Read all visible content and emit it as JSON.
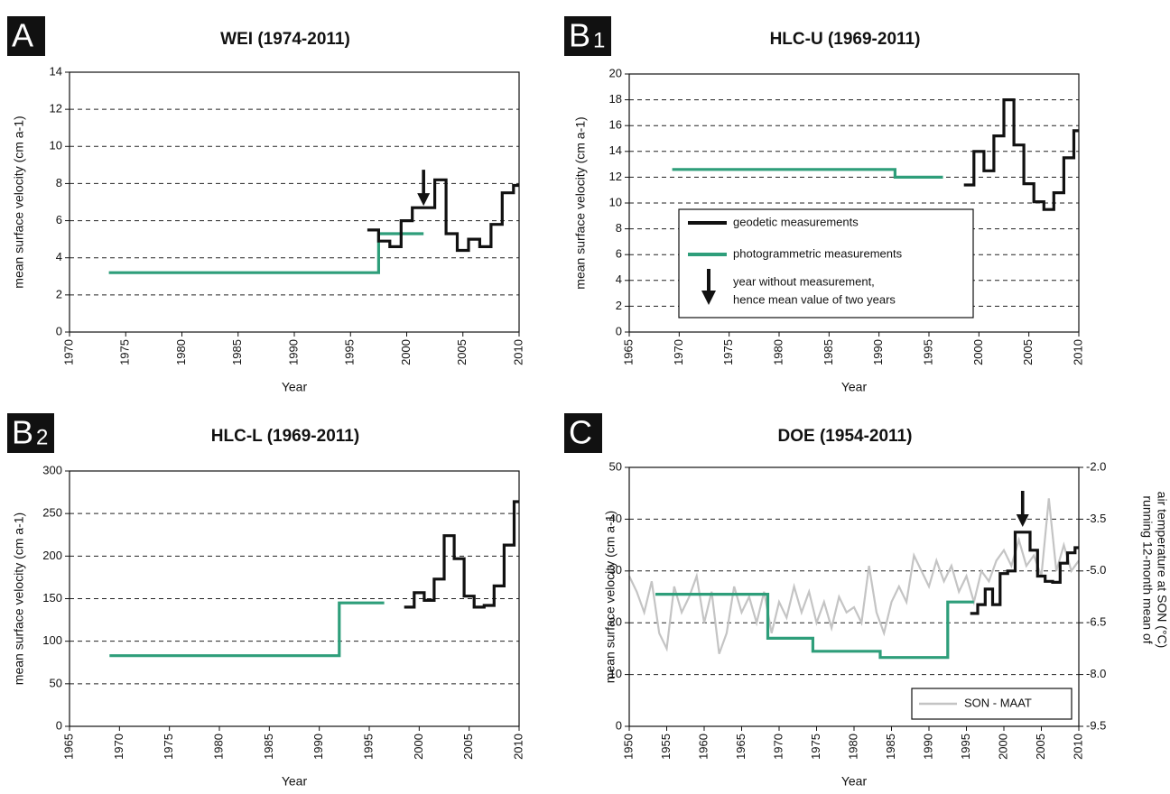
{
  "chart_data": [
    {
      "type": "line",
      "panel": "A",
      "title": "WEI (1974-2011)",
      "x_label": "Year",
      "y_label": "mean surface velocity (cm a-1)",
      "xlim": [
        1970,
        2010
      ],
      "xticks": [
        1970,
        1975,
        1980,
        1985,
        1990,
        1995,
        2000,
        2005,
        2010
      ],
      "ylim": [
        0,
        14
      ],
      "yticks": [
        0,
        2,
        4,
        6,
        8,
        10,
        12,
        14
      ],
      "grid": true,
      "series": [
        {
          "color": "#2e9e7a",
          "x": [
            1973.5,
            1997.5,
            1997.5,
            2001.5
          ],
          "values": [
            3.2,
            3.2,
            5.3,
            5.3
          ]
        },
        {
          "color": "#111111",
          "x": [
            1996.5,
            1997.5,
            1997.5,
            1998.5,
            1998.5,
            1999.5,
            1999.5,
            2000.5,
            2000.5,
            2002.5,
            2002.5,
            2003.5,
            2003.5,
            2004.5,
            2004.5,
            2005.5,
            2005.5,
            2006.5,
            2006.5,
            2007.5,
            2007.5,
            2008.5,
            2008.5,
            2009.5,
            2009.5,
            2010
          ],
          "values": [
            5.5,
            5.5,
            4.9,
            4.9,
            4.6,
            4.6,
            6.0,
            6.0,
            6.7,
            6.7,
            8.2,
            8.2,
            5.3,
            5.3,
            4.4,
            4.4,
            5.0,
            5.0,
            4.6,
            4.6,
            5.8,
            5.8,
            7.5,
            7.5,
            7.9,
            7.9
          ]
        }
      ],
      "arrows": [
        {
          "x": 2001.5,
          "y": 6.8
        }
      ]
    },
    {
      "type": "line",
      "panel": "B",
      "panel_index": "1",
      "title": "HLC-U (1969-2011)",
      "x_label": "Year",
      "y_label": "mean surface velocity (cm a-1)",
      "xlim": [
        1965,
        2010
      ],
      "xticks": [
        1965,
        1970,
        1975,
        1980,
        1985,
        1990,
        1995,
        2000,
        2005,
        2010
      ],
      "ylim": [
        0,
        20
      ],
      "yticks": [
        0,
        2,
        4,
        6,
        8,
        10,
        12,
        14,
        16,
        18,
        20
      ],
      "grid": true,
      "series": [
        {
          "name": "photogrammetric measurements",
          "color": "#2e9e7a",
          "x": [
            1969.3,
            1991.6,
            1991.6,
            1996.4
          ],
          "values": [
            12.6,
            12.6,
            12.0,
            12.0
          ]
        },
        {
          "name": "geodetic measurements",
          "color": "#111111",
          "x": [
            1998.5,
            1999.5,
            1999.5,
            2000.5,
            2000.5,
            2001.5,
            2001.5,
            2002.5,
            2002.5,
            2003.5,
            2003.5,
            2004.5,
            2004.5,
            2005.5,
            2005.5,
            2006.5,
            2006.5,
            2007.5,
            2007.5,
            2008.5,
            2008.5,
            2009.5,
            2009.5,
            2010
          ],
          "values": [
            11.4,
            11.4,
            14.0,
            14.0,
            12.5,
            12.5,
            15.2,
            15.2,
            18.0,
            18.0,
            14.5,
            14.5,
            11.5,
            11.5,
            10.1,
            10.1,
            9.5,
            9.5,
            10.8,
            10.8,
            13.5,
            13.5,
            15.6,
            15.6
          ]
        }
      ],
      "legend_note": [
        "year without measurement,",
        "hence mean value of two years"
      ]
    },
    {
      "type": "line",
      "panel": "B",
      "panel_index": "2",
      "title": "HLC-L (1969-2011)",
      "x_label": "Year",
      "y_label": "mean surface velocity (cm a-1)",
      "xlim": [
        1965,
        2010
      ],
      "xticks": [
        1965,
        1970,
        1975,
        1980,
        1985,
        1990,
        1995,
        2000,
        2005,
        2010
      ],
      "ylim": [
        0,
        300
      ],
      "yticks": [
        0,
        50,
        100,
        150,
        200,
        250,
        300
      ],
      "grid": true,
      "series": [
        {
          "color": "#2e9e7a",
          "x": [
            1969,
            1992,
            1992,
            1996.5
          ],
          "values": [
            83,
            83,
            145,
            145
          ]
        },
        {
          "color": "#111111",
          "x": [
            1998.5,
            1999.5,
            1999.5,
            2000.5,
            2000.5,
            2001.5,
            2001.5,
            2002.5,
            2002.5,
            2003.5,
            2003.5,
            2004.5,
            2004.5,
            2005.5,
            2005.5,
            2006.5,
            2006.5,
            2007.5,
            2007.5,
            2008.5,
            2008.5,
            2009.5,
            2009.5,
            2010
          ],
          "values": [
            140,
            140,
            157,
            157,
            148,
            148,
            173,
            173,
            224,
            224,
            197,
            197,
            153,
            153,
            140,
            140,
            142,
            142,
            165,
            165,
            213,
            213,
            264,
            264
          ]
        }
      ]
    },
    {
      "type": "line",
      "panel": "C",
      "title": "DOE (1954-2011)",
      "x_label": "Year",
      "y_label": "mean surface velocity (cm a-1)",
      "y2_label": [
        "running 12-month mean of",
        "air temperature at SON (°C)"
      ],
      "xlim": [
        1950,
        2010
      ],
      "xticks": [
        1950,
        1955,
        1960,
        1965,
        1970,
        1975,
        1980,
        1985,
        1990,
        1995,
        2000,
        2005,
        2010
      ],
      "ylim": [
        0,
        50
      ],
      "yticks": [
        0,
        10,
        20,
        30,
        40,
        50
      ],
      "y2lim": [
        -9.5,
        -2.0
      ],
      "y2ticks": [
        -9.5,
        {
          "value": -8.0,
          "label": "-8.0"
        },
        -6.5,
        {
          "value": -5.0,
          "label": "-5.0"
        },
        -3.5,
        {
          "value": -2.0,
          "label": "-2.0"
        }
      ],
      "grid": true,
      "series": [
        {
          "name": "SON - MAAT",
          "color": "#c4c4c4",
          "axis": "y2",
          "x": [
            1950,
            1951,
            1952,
            1953,
            1954,
            1955,
            1956,
            1957,
            1958,
            1959,
            1960,
            1961,
            1962,
            1963,
            1964,
            1965,
            1966,
            1967,
            1968,
            1969,
            1970,
            1971,
            1972,
            1973,
            1974,
            1975,
            1976,
            1977,
            1978,
            1979,
            1980,
            1981,
            1982,
            1983,
            1984,
            1985,
            1986,
            1987,
            1988,
            1989,
            1990,
            1991,
            1992,
            1993,
            1994,
            1995,
            1996,
            1997,
            1998,
            1999,
            2000,
            2001,
            2002,
            2003,
            2004,
            2005,
            2006,
            2007,
            2008,
            2009,
            2010
          ],
          "values": [
            -5.15,
            -5.6,
            -6.2,
            -5.3,
            -6.8,
            -7.25,
            -5.45,
            -6.2,
            -5.75,
            -5.15,
            -6.5,
            -5.6,
            -7.4,
            -6.8,
            -5.45,
            -6.2,
            -5.75,
            -6.5,
            -5.6,
            -6.8,
            -5.9,
            -6.35,
            -5.45,
            -6.2,
            -5.6,
            -6.5,
            -5.9,
            -6.65,
            -5.75,
            -6.2,
            -6.05,
            -6.5,
            -4.85,
            -6.2,
            -6.8,
            -5.9,
            -5.45,
            -5.9,
            -4.55,
            -5.0,
            -5.45,
            -4.7,
            -5.3,
            -4.85,
            -5.6,
            -5.15,
            -5.9,
            -5.0,
            -5.3,
            -4.7,
            -4.4,
            -4.85,
            -4.1,
            -4.85,
            -4.55,
            -5.15,
            -2.9,
            -5.0,
            -4.25,
            -5.0,
            -4.7
          ]
        },
        {
          "color": "#2e9e7a",
          "x": [
            1953.5,
            1968.5,
            1968.5,
            1974.5,
            1974.5,
            1983.5,
            1983.5,
            1992.5,
            1992.5,
            1996
          ],
          "values": [
            25.5,
            25.5,
            17,
            17,
            14.5,
            14.5,
            13.3,
            13.3,
            24,
            24
          ]
        },
        {
          "color": "#111111",
          "x": [
            1995.5,
            1996.5,
            1996.5,
            1997.5,
            1997.5,
            1998.5,
            1998.5,
            1999.5,
            1999.5,
            2000.5,
            2000.5,
            2001.5,
            2001.5,
            2003.5,
            2003.5,
            2004.5,
            2004.5,
            2005.5,
            2005.5,
            2006.5,
            2006.5,
            2007.5,
            2007.5,
            2008.5,
            2008.5,
            2009.5,
            2009.5,
            2010
          ],
          "values": [
            21.8,
            21.8,
            23.5,
            23.5,
            26.5,
            26.5,
            23.5,
            23.5,
            29.5,
            29.5,
            30,
            30,
            37.5,
            37.5,
            34,
            34,
            29,
            29,
            28,
            28,
            27.8,
            27.8,
            31.5,
            31.5,
            33.5,
            33.5,
            34.5,
            34.5
          ]
        }
      ],
      "arrows": [
        {
          "x": 2002.5,
          "y": 38.5
        }
      ]
    }
  ]
}
